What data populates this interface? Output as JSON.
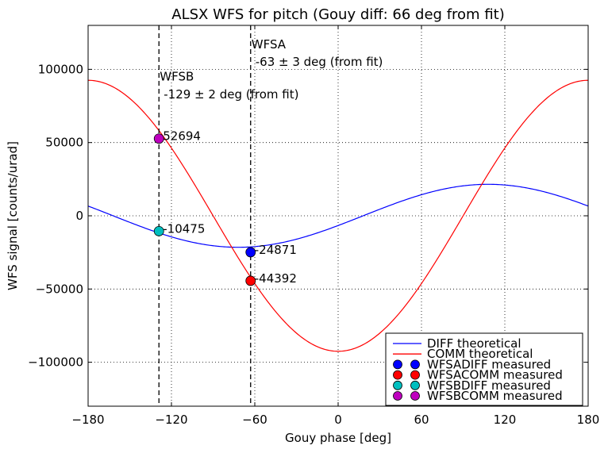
{
  "chart_data": {
    "type": "line",
    "title": "ALSX WFS for pitch (Gouy diff: 66 deg from fit)",
    "xlabel": "Gouy phase [deg]",
    "ylabel": "WFS signal [counts/urad]",
    "xlim": [
      -180,
      180
    ],
    "ylim": [
      -130000,
      130000
    ],
    "xticks": [
      -180,
      -120,
      -60,
      0,
      60,
      120,
      180
    ],
    "xtick_labels": [
      "−180",
      "−120",
      "−60",
      "0",
      "60",
      "120",
      "180"
    ],
    "yticks": [
      -100000,
      -50000,
      0,
      50000,
      100000
    ],
    "ytick_labels": [
      "−100000",
      "−50000",
      "0",
      "50000",
      "100000"
    ],
    "grid": true,
    "legend_position": "lower-right",
    "series": [
      {
        "name": "DIFF theoretical",
        "kind": "line",
        "color": "#0000ff",
        "amplitude": 21500,
        "peak_deg": 108
      },
      {
        "name": "COMM theoretical",
        "kind": "line",
        "color": "#ff0000",
        "amplitude": 92500,
        "peak_deg": 180
      },
      {
        "name": "WFSADIFF measured",
        "kind": "marker",
        "color": "#0000ff",
        "x": -63,
        "y": -24871,
        "label": "-24871"
      },
      {
        "name": "WFSACOMM measured",
        "kind": "marker",
        "color": "#ff0000",
        "x": -63,
        "y": -44392,
        "label": "-44392"
      },
      {
        "name": "WFSBDIFF measured",
        "kind": "marker",
        "color": "#00bfbf",
        "x": -129,
        "y": -10475,
        "label": "-10475"
      },
      {
        "name": "WFSBCOMM measured",
        "kind": "marker",
        "color": "#bf00bf",
        "x": -129,
        "y": 52694,
        "label": "52694"
      }
    ],
    "vlines": [
      {
        "x": -129,
        "label1": "WFSB",
        "label2": "-129 ± 2 deg (from fit)",
        "label1_y": 95000,
        "label2_y": 83000
      },
      {
        "x": -63,
        "label1": "WFSA",
        "label2": "-63 ± 3 deg (from fit)",
        "label1_y": 117000,
        "label2_y": 105000
      }
    ]
  }
}
